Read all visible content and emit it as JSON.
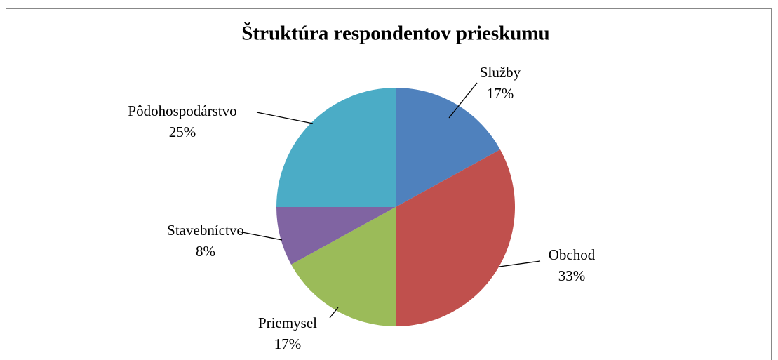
{
  "chart_data": {
    "type": "pie",
    "title": "Štruktúra respondentov prieskumu",
    "categories": [
      "Služby",
      "Obchod",
      "Priemysel",
      "Stavebníctvo",
      "Pôdohospodárstvo"
    ],
    "values": [
      17,
      33,
      17,
      8,
      25
    ],
    "value_labels": [
      "17%",
      "33%",
      "17%",
      "8%",
      "25%"
    ],
    "colors": [
      "#4f81bd",
      "#c0504d",
      "#9bbb59",
      "#8064a2",
      "#4bacc6"
    ]
  }
}
